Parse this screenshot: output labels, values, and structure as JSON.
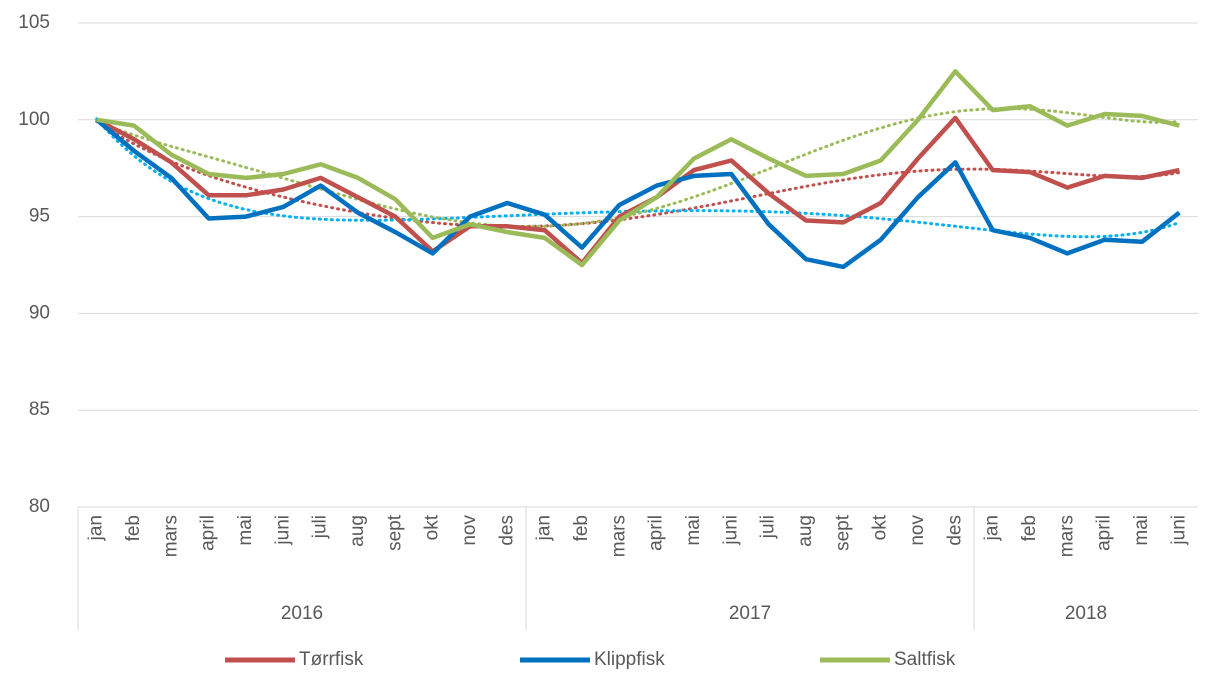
{
  "chart_data": {
    "type": "line",
    "category_groups": [
      {
        "label": "2016",
        "months": [
          "jan",
          "feb",
          "mars",
          "april",
          "mai",
          "juni",
          "juli",
          "aug",
          "sept",
          "okt",
          "nov",
          "des"
        ]
      },
      {
        "label": "2017",
        "months": [
          "jan",
          "feb",
          "mars",
          "april",
          "mai",
          "juni",
          "juli",
          "aug",
          "sept",
          "okt",
          "nov",
          "des"
        ]
      },
      {
        "label": "2018",
        "months": [
          "jan",
          "feb",
          "mars",
          "april",
          "mai",
          "juni"
        ]
      }
    ],
    "series": [
      {
        "name": "Tørrfisk",
        "color": "#c0504d",
        "trend_color": "#c0504d",
        "values": [
          100,
          99.0,
          97.8,
          96.1,
          96.1,
          96.4,
          97.0,
          96.0,
          95.0,
          93.2,
          94.5,
          94.5,
          94.3,
          92.6,
          95.0,
          96.0,
          97.4,
          97.9,
          96.2,
          94.8,
          94.7,
          95.7,
          98.0,
          100.1,
          97.4,
          97.3,
          96.5,
          97.1,
          97.0,
          97.4
        ]
      },
      {
        "name": "Klippfisk",
        "color": "#0070c0",
        "trend_color": "#00b0f0",
        "values": [
          100,
          98.4,
          97.0,
          94.9,
          95.0,
          95.5,
          96.6,
          95.2,
          94.2,
          93.1,
          95.0,
          95.7,
          95.1,
          93.4,
          95.6,
          96.6,
          97.1,
          97.2,
          94.6,
          92.8,
          92.4,
          93.8,
          96.0,
          97.8,
          94.3,
          93.9,
          93.1,
          93.8,
          93.7,
          95.2
        ]
      },
      {
        "name": "Saltfisk",
        "color": "#9bbb59",
        "trend_color": "#9bbb59",
        "values": [
          100,
          99.7,
          98.2,
          97.2,
          97.0,
          97.2,
          97.7,
          97.0,
          95.9,
          93.9,
          94.6,
          94.2,
          93.9,
          92.5,
          94.8,
          96.0,
          98.0,
          99.0,
          98.0,
          97.1,
          97.2,
          97.9,
          100.0,
          102.5,
          100.5,
          100.7,
          99.7,
          100.3,
          100.2,
          99.7
        ]
      }
    ],
    "ylim": [
      80,
      105
    ],
    "yticks": [
      80,
      85,
      90,
      95,
      100,
      105
    ],
    "grid": true,
    "trendline": true,
    "legend": "bottom"
  }
}
